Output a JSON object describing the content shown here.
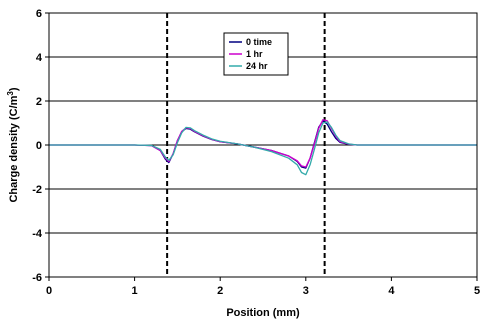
{
  "chart_data": {
    "type": "line",
    "title": "",
    "xlabel": "Position (mm)",
    "ylabel": "Charge density (C/m",
    "ylabel_sup": "3",
    "ylabel_close": ")",
    "xlim": [
      0,
      5
    ],
    "ylim": [
      -6,
      6
    ],
    "xticks": [
      0,
      1,
      2,
      3,
      4,
      5
    ],
    "yticks": [
      -6,
      -4,
      -2,
      0,
      2,
      4,
      6
    ],
    "xtick_labels": [
      "0",
      "1",
      "2",
      "3",
      "4",
      "5"
    ],
    "ytick_labels": [
      "-6",
      "-4",
      "-2",
      "0",
      "2",
      "4",
      "6"
    ],
    "grid": "horizontal",
    "legend_position": "top-center",
    "vlines": [
      1.38,
      3.22
    ],
    "series": [
      {
        "name": "0 time",
        "color": "#000080",
        "x": [
          0,
          1.0,
          1.2,
          1.3,
          1.36,
          1.4,
          1.45,
          1.5,
          1.55,
          1.6,
          1.65,
          1.7,
          1.8,
          1.9,
          2.0,
          2.2,
          2.4,
          2.6,
          2.8,
          2.9,
          2.95,
          3.0,
          3.05,
          3.1,
          3.15,
          3.2,
          3.25,
          3.3,
          3.35,
          3.4,
          3.5,
          3.6,
          3.8,
          5.0
        ],
        "y": [
          0,
          0,
          -0.03,
          -0.25,
          -0.65,
          -0.8,
          -0.4,
          0.2,
          0.6,
          0.75,
          0.72,
          0.6,
          0.4,
          0.25,
          0.15,
          0.05,
          -0.1,
          -0.25,
          -0.5,
          -0.75,
          -1.0,
          -1.05,
          -0.6,
          0.1,
          0.8,
          1.1,
          0.95,
          0.6,
          0.3,
          0.12,
          0.03,
          0,
          0,
          0
        ]
      },
      {
        "name": "1 hr",
        "color": "#cc00cc",
        "x": [
          0,
          1.0,
          1.2,
          1.3,
          1.36,
          1.4,
          1.45,
          1.5,
          1.55,
          1.6,
          1.65,
          1.7,
          1.8,
          1.9,
          2.0,
          2.2,
          2.4,
          2.6,
          2.8,
          2.9,
          2.95,
          3.0,
          3.05,
          3.1,
          3.15,
          3.2,
          3.25,
          3.3,
          3.35,
          3.4,
          3.5,
          3.6,
          3.8,
          5.0
        ],
        "y": [
          0,
          0,
          -0.03,
          -0.25,
          -0.6,
          -0.75,
          -0.4,
          0.2,
          0.62,
          0.78,
          0.75,
          0.62,
          0.42,
          0.26,
          0.15,
          0.05,
          -0.1,
          -0.25,
          -0.5,
          -0.72,
          -0.95,
          -1.0,
          -0.6,
          0.05,
          0.75,
          1.15,
          1.1,
          0.75,
          0.4,
          0.15,
          0.04,
          0,
          0,
          0
        ]
      },
      {
        "name": "24 hr",
        "color": "#33aaaa",
        "x": [
          0,
          1.0,
          1.2,
          1.3,
          1.36,
          1.4,
          1.45,
          1.5,
          1.55,
          1.6,
          1.65,
          1.7,
          1.8,
          1.9,
          2.0,
          2.2,
          2.4,
          2.6,
          2.8,
          2.9,
          2.95,
          3.0,
          3.05,
          3.1,
          3.15,
          3.2,
          3.25,
          3.3,
          3.35,
          3.4,
          3.5,
          3.6,
          3.8,
          5.0
        ],
        "y": [
          0,
          0,
          -0.02,
          -0.2,
          -0.55,
          -0.7,
          -0.45,
          0.1,
          0.55,
          0.8,
          0.78,
          0.65,
          0.45,
          0.28,
          0.17,
          0.05,
          -0.1,
          -0.3,
          -0.6,
          -0.9,
          -1.25,
          -1.35,
          -0.9,
          -0.2,
          0.55,
          1.0,
          1.05,
          0.8,
          0.45,
          0.2,
          0.05,
          0,
          0,
          0
        ]
      }
    ]
  }
}
